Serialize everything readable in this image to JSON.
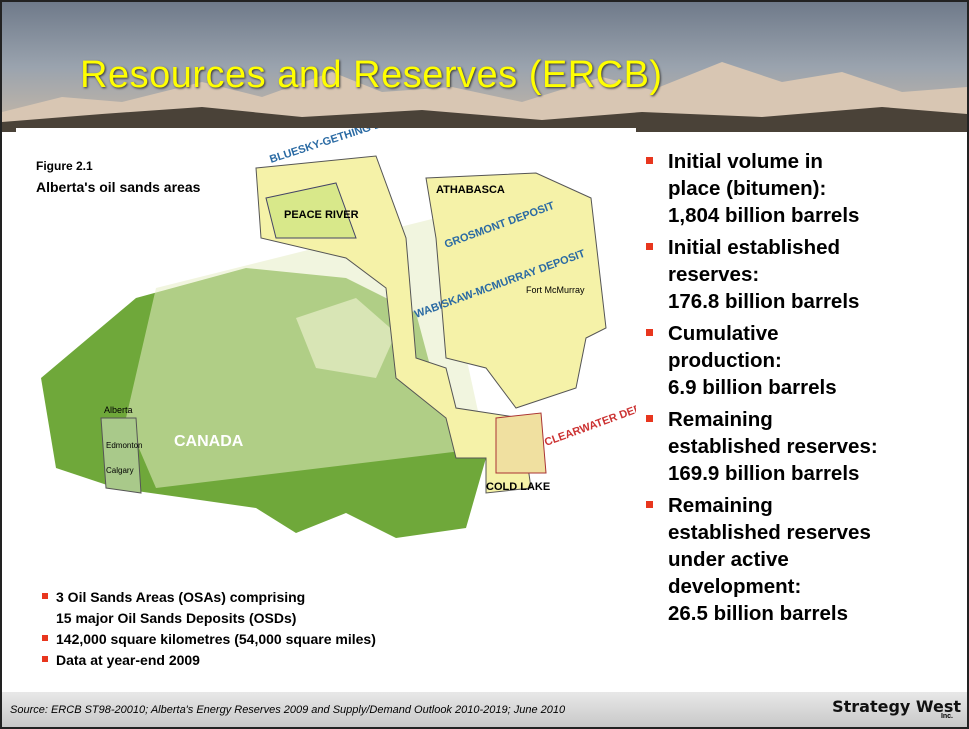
{
  "title": "Resources and Reserves (ERCB)",
  "figure": {
    "number": "Figure 2.1",
    "caption": "Alberta's oil sands areas",
    "labels": {
      "bluesky": "BLUESKY-GETHING DEPOSIT",
      "peace": "PEACE RIVER",
      "athabasca": "ATHABASCA",
      "grosmont": "GROSMONT DEPOSIT",
      "wabiskaw": "WABISKAW-MCMURRAY DEPOSIT",
      "fort": "Fort McMurray",
      "canada": "CANADA",
      "alberta": "Alberta",
      "edmonton": "Edmonton",
      "calgary": "Calgary",
      "coldlake": "COLD LAKE",
      "clearwater": "CLEARWATER DEPOSIT"
    }
  },
  "right_bullets": [
    [
      "Initial volume in",
      "place (bitumen):",
      "1,804 billion barrels"
    ],
    [
      "Initial established",
      "reserves:",
      "176.8 billion barrels"
    ],
    [
      "Cumulative",
      "production:",
      "6.9 billion barrels"
    ],
    [
      "Remaining",
      "established reserves:",
      "169.9 billion barrels"
    ],
    [
      "Remaining",
      "established reserves",
      "under active",
      "development:",
      "26.5 billion barrels"
    ]
  ],
  "left_bullets": [
    [
      "3 Oil Sands Areas (OSAs) comprising",
      "15 major Oil Sands Deposits (OSDs)"
    ],
    [
      "142,000 square kilometres (54,000 square miles)"
    ],
    [
      "Data at year-end 2009"
    ]
  ],
  "source": "Source: ERCB ST98-20010; Alberta's Energy Reserves 2009 and Supply/Demand Outlook 2010-2019; June 2010",
  "logo": {
    "main": "Strategy West",
    "sub": "Inc."
  }
}
